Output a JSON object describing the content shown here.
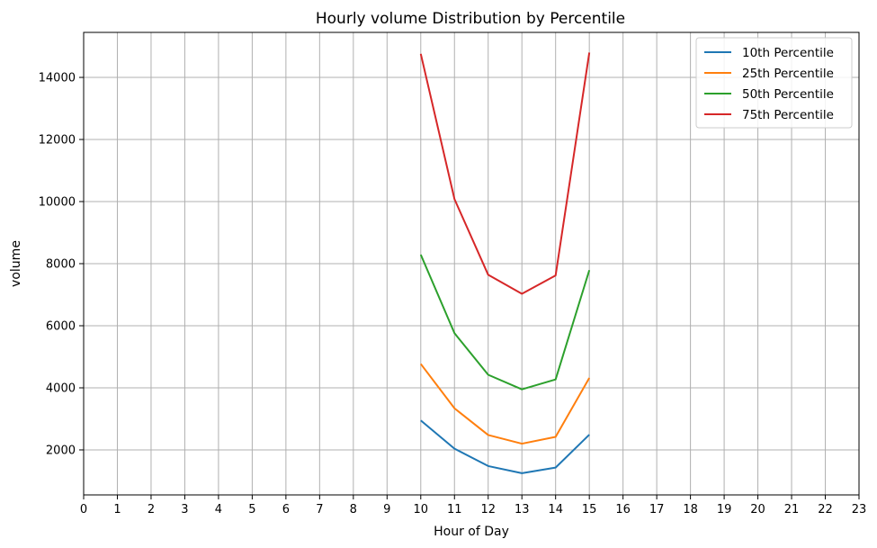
{
  "chart_data": {
    "type": "line",
    "title": "Hourly volume Distribution by Percentile",
    "xlabel": "Hour of Day",
    "ylabel": "volume",
    "x_ticks": [
      "0",
      "1",
      "2",
      "3",
      "4",
      "5",
      "6",
      "7",
      "8",
      "9",
      "10",
      "11",
      "12",
      "13",
      "14",
      "15",
      "16",
      "17",
      "18",
      "19",
      "20",
      "21",
      "22",
      "23"
    ],
    "y_ticks": [
      "2000",
      "4000",
      "6000",
      "8000",
      "10000",
      "12000",
      "14000"
    ],
    "xlim": [
      0,
      23
    ],
    "ylim": [
      550,
      15450
    ],
    "grid": true,
    "legend_position": "top-right",
    "x": [
      10,
      11,
      12,
      13,
      14,
      15
    ],
    "series": [
      {
        "name": "10th Percentile",
        "color": "#1f77b4",
        "values": [
          2950,
          2040,
          1480,
          1250,
          1430,
          2490
        ]
      },
      {
        "name": "25th Percentile",
        "color": "#ff7f0e",
        "values": [
          4770,
          3340,
          2480,
          2200,
          2420,
          4320
        ]
      },
      {
        "name": "50th Percentile",
        "color": "#2ca02c",
        "values": [
          8290,
          5760,
          4420,
          3950,
          4270,
          7790
        ]
      },
      {
        "name": "75th Percentile",
        "color": "#d62728",
        "values": [
          14760,
          10080,
          7640,
          7030,
          7620,
          14800
        ]
      }
    ]
  }
}
